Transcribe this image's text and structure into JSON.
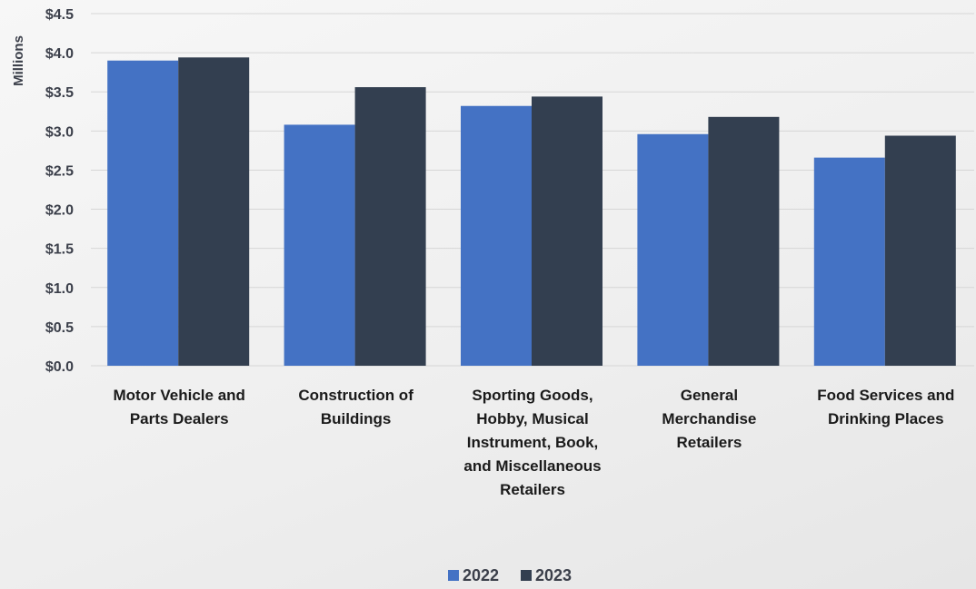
{
  "chart_data": {
    "type": "bar",
    "ylabel": "Millions",
    "ylim": [
      0,
      4.5
    ],
    "y_ticks": [
      "$0.0",
      "$0.5",
      "$1.0",
      "$1.5",
      "$2.0",
      "$2.5",
      "$3.0",
      "$3.5",
      "$4.0",
      "$4.5"
    ],
    "y_tick_values": [
      0,
      0.5,
      1.0,
      1.5,
      2.0,
      2.5,
      3.0,
      3.5,
      4.0,
      4.5
    ],
    "grid": true,
    "legend_position": "bottom-center",
    "categories": [
      [
        "Motor Vehicle and",
        "Parts Dealers"
      ],
      [
        "Construction of",
        "Buildings"
      ],
      [
        "Sporting Goods,",
        "Hobby, Musical",
        "Instrument, Book,",
        "and Miscellaneous",
        "Retailers"
      ],
      [
        "General",
        "Merchandise",
        "Retailers"
      ],
      [
        "Food Services and",
        "Drinking Places"
      ]
    ],
    "series": [
      {
        "name": "2022",
        "color": "#4472c4",
        "values": [
          3.9,
          3.08,
          3.32,
          2.96,
          2.66
        ]
      },
      {
        "name": "2023",
        "color": "#333f50",
        "values": [
          3.94,
          3.56,
          3.44,
          3.18,
          2.94
        ]
      }
    ]
  }
}
